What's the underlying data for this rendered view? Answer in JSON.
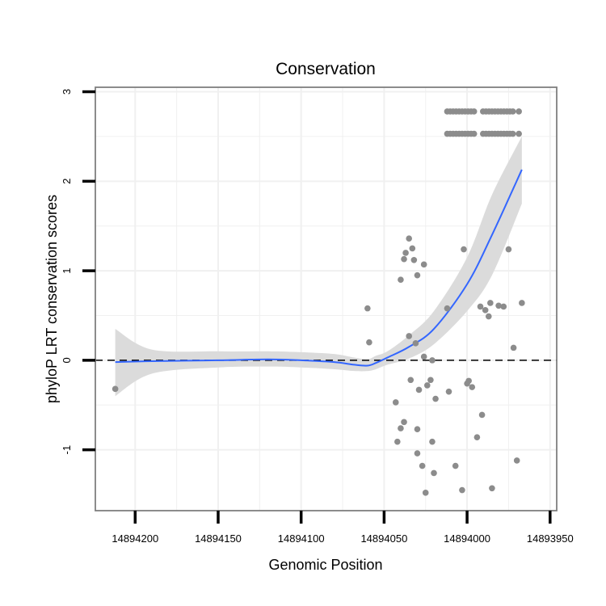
{
  "chart_data": {
    "type": "scatter",
    "title": "Conservation",
    "xlabel": "Genomic Position",
    "ylabel": "phyloP LRT conservation scores",
    "x_reversed": true,
    "xlim": [
      14894224,
      14893946
    ],
    "ylim": [
      -1.68,
      3.05
    ],
    "x_ticks": [
      14894200,
      14894150,
      14894100,
      14894050,
      14894000,
      14893950
    ],
    "x_tick_labels": [
      "14894200",
      "14894150",
      "14894100",
      "14894050",
      "14894000",
      "14893950"
    ],
    "y_ticks": [
      -1,
      0,
      1,
      2,
      3
    ],
    "y_tick_labels": [
      "-1",
      "0",
      "1",
      "2",
      "3"
    ],
    "grid": true,
    "reference_line": {
      "y": 0,
      "style": "dashed"
    },
    "colors": {
      "points": "#8c8c8c",
      "smooth_line": "#3366ff",
      "ribbon": "#d9d9d9",
      "frame": "#7f7f7f",
      "grid": "#f0f0f0"
    },
    "points": [
      {
        "x": 14894212,
        "y": -0.32
      },
      {
        "x": 14894060,
        "y": 0.58
      },
      {
        "x": 14894030,
        "y": 0.95
      },
      {
        "x": 14894059,
        "y": 0.2
      },
      {
        "x": 14894043,
        "y": -0.47
      },
      {
        "x": 14894042,
        "y": -0.91
      },
      {
        "x": 14894040,
        "y": 0.9
      },
      {
        "x": 14894040,
        "y": -0.76
      },
      {
        "x": 14894038,
        "y": 1.13
      },
      {
        "x": 14894038,
        "y": -0.69
      },
      {
        "x": 14894037,
        "y": 1.2
      },
      {
        "x": 14894035,
        "y": 0.27
      },
      {
        "x": 14894035,
        "y": 1.36
      },
      {
        "x": 14894034,
        "y": -0.22
      },
      {
        "x": 14894033,
        "y": 1.25
      },
      {
        "x": 14894032,
        "y": 1.12
      },
      {
        "x": 14894031,
        "y": 0.19
      },
      {
        "x": 14894030,
        "y": -1.04
      },
      {
        "x": 14894030,
        "y": -0.77
      },
      {
        "x": 14894029,
        "y": -0.33
      },
      {
        "x": 14894027,
        "y": -1.18
      },
      {
        "x": 14894026,
        "y": 1.07
      },
      {
        "x": 14894026,
        "y": 0.04
      },
      {
        "x": 14894025,
        "y": -1.48
      },
      {
        "x": 14894024,
        "y": -0.28
      },
      {
        "x": 14894022,
        "y": -0.22
      },
      {
        "x": 14894021,
        "y": 0.0
      },
      {
        "x": 14894021,
        "y": -0.91
      },
      {
        "x": 14894020,
        "y": -1.26
      },
      {
        "x": 14894019,
        "y": -0.43
      },
      {
        "x": 14894012,
        "y": 0.58
      },
      {
        "x": 14894011,
        "y": -0.35
      },
      {
        "x": 14894007,
        "y": -1.18
      },
      {
        "x": 14894003,
        "y": -1.45
      },
      {
        "x": 14894002,
        "y": 1.24
      },
      {
        "x": 14894000,
        "y": -0.26
      },
      {
        "x": 14893999,
        "y": -0.23
      },
      {
        "x": 14893997,
        "y": -0.3
      },
      {
        "x": 14893994,
        "y": -0.86
      },
      {
        "x": 14893992,
        "y": 0.6
      },
      {
        "x": 14893991,
        "y": -0.61
      },
      {
        "x": 14893989,
        "y": 0.56
      },
      {
        "x": 14893987,
        "y": 0.49
      },
      {
        "x": 14893986,
        "y": 0.64
      },
      {
        "x": 14893985,
        "y": -1.43
      },
      {
        "x": 14893981,
        "y": 0.61
      },
      {
        "x": 14893978,
        "y": 0.6
      },
      {
        "x": 14893975,
        "y": 1.24
      },
      {
        "x": 14893972,
        "y": 0.14
      },
      {
        "x": 14893970,
        "y": -1.12
      },
      {
        "x": 14893967,
        "y": 0.64
      }
    ],
    "upper_rows": {
      "y_values": [
        2.78,
        2.53
      ],
      "x_start": 14894012,
      "x_end": 14893968,
      "step": 1.8,
      "gaps": [
        [
          14893995,
          14893991
        ],
        [
          14893972,
          14893969
        ]
      ]
    },
    "smooth": {
      "x": [
        14894212,
        14894190,
        14894150,
        14894120,
        14894100,
        14894080,
        14894068,
        14894060,
        14894055,
        14894048,
        14894035,
        14894020,
        14894000,
        14893985,
        14893967
      ],
      "y": [
        -0.02,
        -0.01,
        0.0,
        0.01,
        0.0,
        -0.02,
        -0.05,
        -0.06,
        -0.03,
        0.03,
        0.15,
        0.35,
        0.85,
        1.4,
        2.13
      ],
      "lower": [
        -0.4,
        -0.15,
        -0.08,
        -0.07,
        -0.08,
        -0.1,
        -0.12,
        -0.12,
        -0.1,
        -0.05,
        0.02,
        0.18,
        0.55,
        0.95,
        1.75
      ],
      "upper": [
        0.35,
        0.12,
        0.1,
        0.1,
        0.09,
        0.07,
        0.03,
        0.01,
        0.05,
        0.1,
        0.28,
        0.55,
        1.15,
        1.85,
        2.5
      ]
    }
  }
}
